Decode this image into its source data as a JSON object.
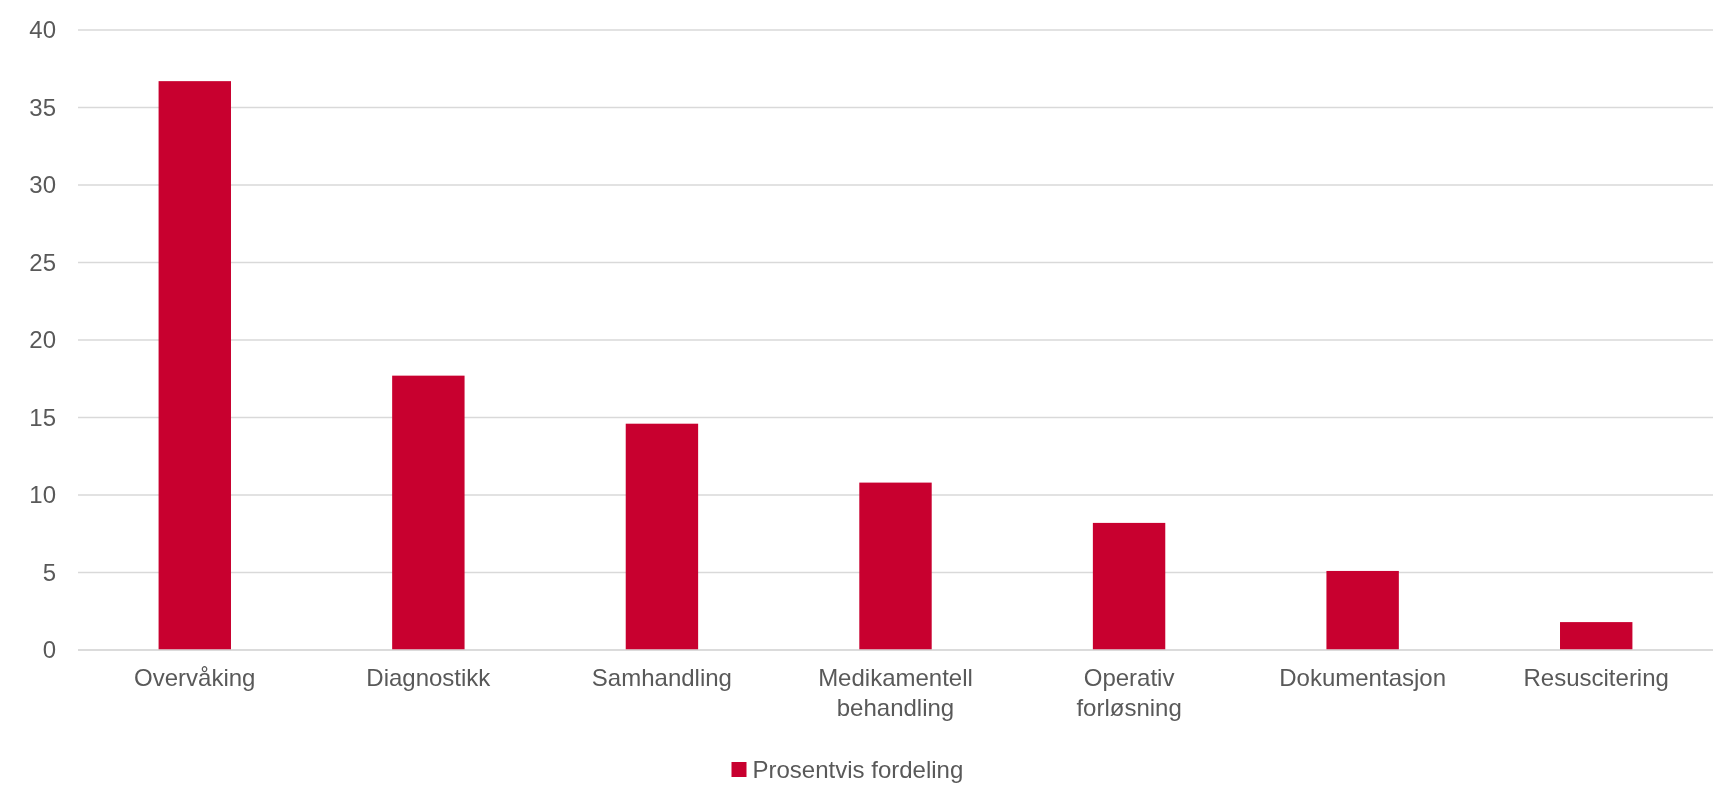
{
  "chart_data": {
    "type": "bar",
    "categories": [
      "Overvåking",
      "Diagnostikk",
      "Samhandling",
      "Medikamentell behandling",
      "Operativ forløsning",
      "Dokumentasjon",
      "Resuscitering"
    ],
    "series": [
      {
        "name": "Prosentvis fordeling",
        "color": "#c8002f",
        "values": [
          36.7,
          17.7,
          14.6,
          10.8,
          8.2,
          5.1,
          1.8
        ]
      }
    ],
    "ylim": [
      0,
      40
    ],
    "yticks": [
      0,
      5,
      10,
      15,
      20,
      25,
      30,
      35,
      40
    ],
    "grid": "y",
    "legend": "bottom"
  }
}
